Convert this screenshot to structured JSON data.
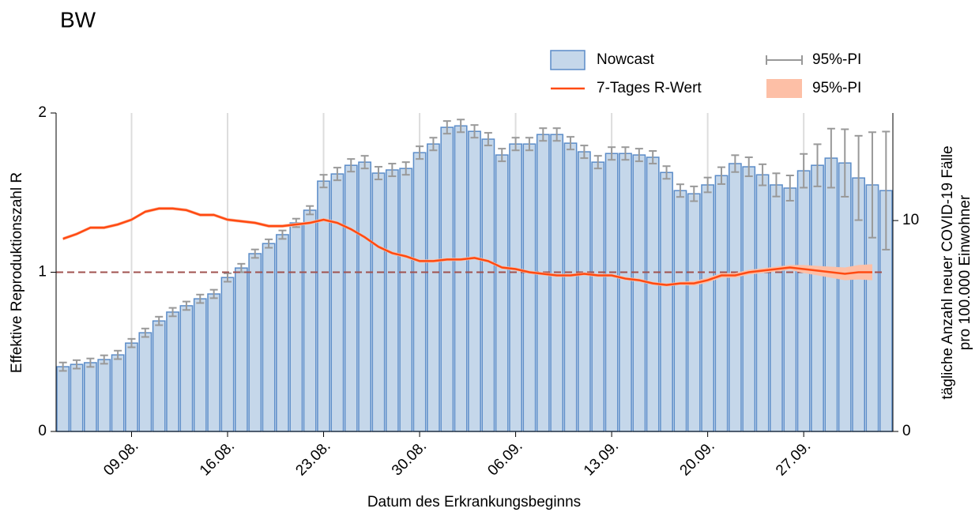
{
  "chart_data": {
    "type": "bar-line",
    "title": "BW",
    "xlabel": "Datum des Erkrankungsbeginns",
    "ylabel": "Effektive Reproduktionszahl R",
    "y2label": [
      "tägliche Anzahl neuer COVID-19 Fälle",
      "pro 100.000 Einwohner"
    ],
    "categories": [
      null,
      null,
      null,
      null,
      null,
      "09.08.",
      null,
      null,
      null,
      null,
      null,
      null,
      "16.08.",
      null,
      null,
      null,
      null,
      null,
      null,
      "23.08.",
      null,
      null,
      null,
      null,
      null,
      null,
      "30.08.",
      null,
      null,
      null,
      null,
      null,
      null,
      "06.09.",
      null,
      null,
      null,
      null,
      null,
      null,
      "13.09.",
      null,
      null,
      null,
      null,
      null,
      null,
      "20.09.",
      null,
      null,
      null,
      null,
      null,
      null,
      "27.09.",
      null,
      null,
      null,
      null,
      null,
      null
    ],
    "ylim": [
      0,
      2
    ],
    "yticks": [
      0,
      1,
      2
    ],
    "y2lim": [
      0,
      15.1
    ],
    "y2ticks": [
      0,
      10
    ],
    "reference_line": 1,
    "reference_color": "#a0524f",
    "grid": true,
    "series": [
      {
        "name": "Nowcast",
        "kind": "bar",
        "axis": "y2",
        "color": "#c5d7ea",
        "edge": "#5b8cc8",
        "values": [
          3.07,
          3.18,
          3.26,
          3.41,
          3.63,
          4.19,
          4.68,
          5.24,
          5.66,
          5.96,
          6.29,
          6.52,
          7.3,
          7.75,
          8.43,
          8.91,
          9.33,
          9.89,
          10.49,
          11.87,
          12.21,
          12.62,
          12.77,
          12.25,
          12.4,
          12.47,
          13.22,
          13.63,
          14.42,
          14.49,
          14.23,
          13.86,
          13.11,
          13.63,
          13.63,
          14.08,
          14.08,
          13.67,
          13.26,
          12.77,
          13.18,
          13.18,
          13.11,
          13.0,
          12.28,
          11.42,
          11.27,
          11.69,
          12.13,
          12.7,
          12.55,
          12.17,
          11.69,
          11.54,
          12.36,
          12.62,
          12.96,
          12.73,
          12.02,
          11.69,
          11.42
        ]
      },
      {
        "name": "95%-PI",
        "kind": "errorbar",
        "axis": "y2",
        "color": "#999999",
        "errors": [
          0.2,
          0.2,
          0.2,
          0.2,
          0.2,
          0.2,
          0.2,
          0.2,
          0.2,
          0.2,
          0.2,
          0.2,
          0.2,
          0.2,
          0.2,
          0.2,
          0.2,
          0.2,
          0.2,
          0.3,
          0.3,
          0.3,
          0.3,
          0.3,
          0.3,
          0.3,
          0.3,
          0.3,
          0.3,
          0.3,
          0.3,
          0.3,
          0.3,
          0.3,
          0.3,
          0.3,
          0.3,
          0.3,
          0.3,
          0.3,
          0.3,
          0.3,
          0.3,
          0.3,
          0.3,
          0.3,
          0.35,
          0.35,
          0.4,
          0.4,
          0.45,
          0.5,
          0.55,
          0.6,
          0.8,
          1.0,
          1.4,
          1.6,
          2.0,
          2.5,
          2.8
        ]
      },
      {
        "name": "7-Tages R-Wert",
        "kind": "line",
        "color": "#ff4a12",
        "values": [
          1.21,
          1.24,
          1.28,
          1.28,
          1.3,
          1.33,
          1.38,
          1.4,
          1.4,
          1.39,
          1.36,
          1.36,
          1.33,
          1.32,
          1.31,
          1.29,
          1.29,
          1.3,
          1.31,
          1.33,
          1.31,
          1.27,
          1.22,
          1.16,
          1.12,
          1.1,
          1.07,
          1.07,
          1.08,
          1.08,
          1.09,
          1.07,
          1.03,
          1.02,
          1.0,
          0.99,
          0.98,
          0.98,
          0.99,
          0.98,
          0.98,
          0.96,
          0.95,
          0.93,
          0.92,
          0.93,
          0.93,
          0.95,
          0.98,
          0.98,
          1.0,
          1.01,
          1.02,
          1.03,
          1.02,
          1.01,
          1.0,
          0.99,
          1.0,
          1.0,
          null
        ]
      },
      {
        "name": "95%-PI",
        "kind": "band",
        "color": "#fdbfa6",
        "errors": [
          0.01,
          0.01,
          0.01,
          0.01,
          0.01,
          0.01,
          0.01,
          0.01,
          0.01,
          0.01,
          0.01,
          0.01,
          0.01,
          0.01,
          0.01,
          0.01,
          0.01,
          0.01,
          0.01,
          0.01,
          0.01,
          0.01,
          0.01,
          0.01,
          0.01,
          0.01,
          0.01,
          0.01,
          0.01,
          0.01,
          0.01,
          0.01,
          0.01,
          0.01,
          0.01,
          0.01,
          0.01,
          0.01,
          0.01,
          0.01,
          0.01,
          0.01,
          0.01,
          0.01,
          0.01,
          0.01,
          0.015,
          0.015,
          0.015,
          0.015,
          0.015,
          0.015,
          0.015,
          0.015,
          0.025,
          0.03,
          0.035,
          0.04,
          0.045,
          0.05,
          null
        ]
      }
    ]
  }
}
